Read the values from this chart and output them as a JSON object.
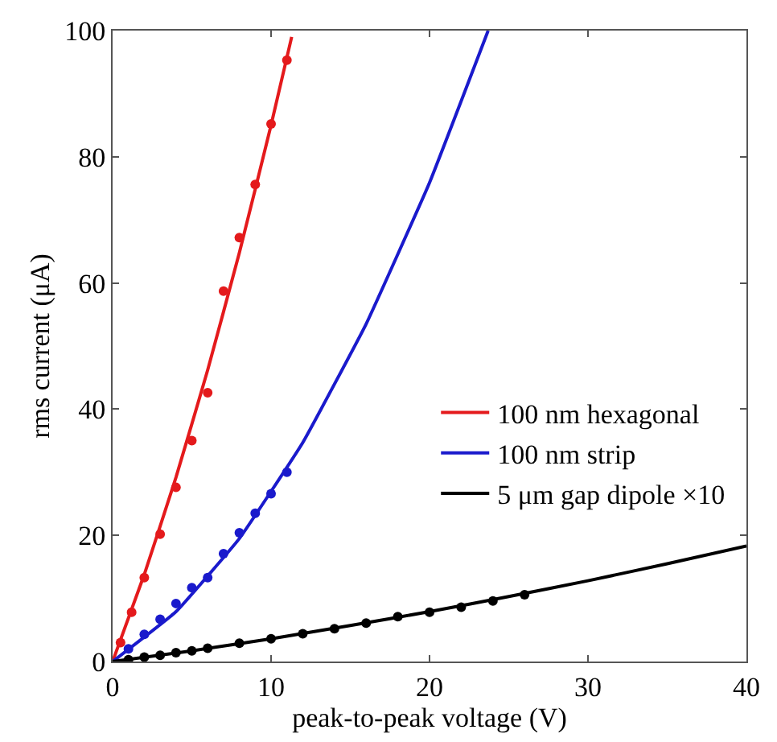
{
  "chart_data": {
    "type": "scatter",
    "xlabel": "peak-to-peak voltage (V)",
    "ylabel": "rms current (μA)",
    "xlim": [
      0,
      40
    ],
    "ylim": [
      0,
      100
    ],
    "xticks": [
      0,
      10,
      20,
      30,
      40
    ],
    "yticks": [
      0,
      20,
      40,
      60,
      80,
      100
    ],
    "legend": "bottom right",
    "marker": "circle",
    "series": [
      {
        "color": "#e41a1c",
        "x": [
          0.5,
          1.2,
          2,
          3,
          4,
          5,
          6,
          7,
          8,
          9,
          10,
          11
        ],
        "values": [
          3,
          7.8,
          13.3,
          20.2,
          27.6,
          35,
          42.6,
          58.7,
          67.2,
          75.6,
          85.2,
          95.3
        ]
      },
      {
        "color": "#1a1acc",
        "x": [
          1,
          2,
          3,
          4,
          5,
          6,
          7,
          8,
          9,
          10,
          11
        ],
        "values": [
          2,
          4.3,
          6.7,
          9.2,
          11.7,
          13.3,
          17.1,
          20.4,
          23.5,
          26.6,
          30
        ]
      },
      {
        "color": "#000000",
        "x": [
          1,
          2,
          3,
          4,
          5,
          6,
          8,
          10,
          12,
          14,
          16,
          18,
          20,
          22,
          24,
          26
        ],
        "values": [
          0.3,
          0.7,
          1,
          1.4,
          1.7,
          2.1,
          2.9,
          3.6,
          4.4,
          5.2,
          6.1,
          7.1,
          7.8,
          8.6,
          9.6,
          10.6
        ]
      },
      {
        "type": "line",
        "name": "100 nm hexagonal",
        "color": "#e41a1c",
        "marker": "none",
        "x": [
          0,
          2,
          4,
          6,
          8,
          10,
          11.3
        ],
        "values": [
          0,
          13.8,
          29.2,
          46.2,
          64.8,
          85,
          99
        ]
      },
      {
        "type": "line",
        "name": "100 nm strip",
        "color": "#1a1acc",
        "marker": "none",
        "x": [
          0,
          4,
          8,
          12,
          16,
          20,
          23.7
        ],
        "values": [
          0,
          7.9,
          19.5,
          34.7,
          53.5,
          75.9,
          100
        ]
      },
      {
        "type": "line",
        "name": "5 μm gap dipole ×10",
        "color": "#000000",
        "marker": "none",
        "x": [
          0,
          5,
          10,
          15,
          20,
          25,
          30,
          35,
          40
        ],
        "values": [
          0,
          1.7,
          3.6,
          5.7,
          7.9,
          10.3,
          12.8,
          15.5,
          18.3
        ]
      }
    ]
  }
}
